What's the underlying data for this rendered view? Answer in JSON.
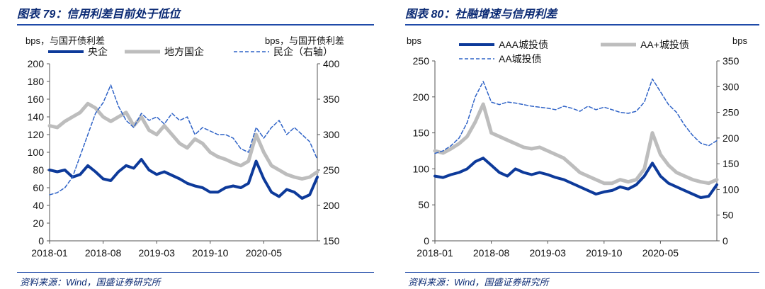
{
  "figures": [
    {
      "caption": "图表 79：信用利差目前处于低位",
      "source": "资料来源：Wind，国盛证券研究所"
    },
    {
      "caption": "图表 80：社融增速与信用利差",
      "source": "资料来源：Wind，国盛证券研究所"
    }
  ],
  "chart_data": [
    {
      "type": "line",
      "title": "",
      "ylabel_left": "bps，与国开债利差",
      "ylabel_right": "bps，与国开债利差",
      "x_ticks": [
        "2018-01",
        "2018-08",
        "2019-03",
        "2019-10",
        "2020-05"
      ],
      "xlim": [
        "2018-01",
        "2020-12"
      ],
      "ylim_left": [
        0,
        200
      ],
      "yticks_left": [
        0,
        20,
        40,
        60,
        80,
        100,
        120,
        140,
        160,
        180,
        200
      ],
      "ylim_right": [
        150,
        400
      ],
      "yticks_right": [
        150,
        200,
        250,
        300,
        350,
        400
      ],
      "legend_placement": "top",
      "series": [
        {
          "name": "央企",
          "axis": "left",
          "color": "#0d3a9a",
          "style": "solid",
          "width": 4,
          "x": [
            "2018-01",
            "2018-02",
            "2018-03",
            "2018-04",
            "2018-05",
            "2018-06",
            "2018-07",
            "2018-08",
            "2018-09",
            "2018-10",
            "2018-11",
            "2018-12",
            "2019-01",
            "2019-02",
            "2019-03",
            "2019-04",
            "2019-05",
            "2019-06",
            "2019-07",
            "2019-08",
            "2019-09",
            "2019-10",
            "2019-11",
            "2019-12",
            "2020-01",
            "2020-02",
            "2020-03",
            "2020-04",
            "2020-05",
            "2020-06",
            "2020-07",
            "2020-08",
            "2020-09",
            "2020-10",
            "2020-11",
            "2020-12"
          ],
          "values": [
            80,
            78,
            80,
            72,
            75,
            85,
            78,
            70,
            68,
            78,
            85,
            82,
            92,
            80,
            75,
            78,
            74,
            70,
            65,
            62,
            60,
            55,
            55,
            60,
            62,
            60,
            65,
            90,
            70,
            55,
            50,
            58,
            55,
            48,
            52,
            72
          ]
        },
        {
          "name": "地方国企",
          "axis": "left",
          "color": "#bdbdbd",
          "style": "solid",
          "width": 5,
          "x": [
            "2018-01",
            "2018-02",
            "2018-03",
            "2018-04",
            "2018-05",
            "2018-06",
            "2018-07",
            "2018-08",
            "2018-09",
            "2018-10",
            "2018-11",
            "2018-12",
            "2019-01",
            "2019-02",
            "2019-03",
            "2019-04",
            "2019-05",
            "2019-06",
            "2019-07",
            "2019-08",
            "2019-09",
            "2019-10",
            "2019-11",
            "2019-12",
            "2020-01",
            "2020-02",
            "2020-03",
            "2020-04",
            "2020-05",
            "2020-06",
            "2020-07",
            "2020-08",
            "2020-09",
            "2020-10",
            "2020-11",
            "2020-12"
          ],
          "values": [
            130,
            128,
            135,
            140,
            145,
            155,
            150,
            140,
            135,
            140,
            145,
            130,
            140,
            125,
            120,
            130,
            120,
            110,
            105,
            115,
            110,
            100,
            95,
            92,
            88,
            85,
            90,
            120,
            100,
            85,
            80,
            75,
            72,
            70,
            72,
            78
          ]
        },
        {
          "name": "民企（右轴）",
          "axis": "right",
          "color": "#2f63c7",
          "style": "dashed",
          "width": 1.5,
          "x": [
            "2018-01",
            "2018-02",
            "2018-03",
            "2018-04",
            "2018-05",
            "2018-06",
            "2018-07",
            "2018-08",
            "2018-09",
            "2018-10",
            "2018-11",
            "2018-12",
            "2019-01",
            "2019-02",
            "2019-03",
            "2019-04",
            "2019-05",
            "2019-06",
            "2019-07",
            "2019-08",
            "2019-09",
            "2019-10",
            "2019-11",
            "2019-12",
            "2020-01",
            "2020-02",
            "2020-03",
            "2020-04",
            "2020-05",
            "2020-06",
            "2020-07",
            "2020-08",
            "2020-09",
            "2020-10",
            "2020-11",
            "2020-12"
          ],
          "values": [
            215,
            218,
            225,
            240,
            270,
            300,
            330,
            345,
            370,
            340,
            320,
            310,
            330,
            320,
            325,
            315,
            330,
            320,
            325,
            300,
            310,
            305,
            300,
            300,
            295,
            280,
            275,
            310,
            295,
            310,
            320,
            300,
            310,
            300,
            290,
            265
          ]
        }
      ]
    },
    {
      "type": "line",
      "title": "",
      "ylabel_left": "bps",
      "ylabel_right": "bps",
      "x_ticks": [
        "2018-01",
        "2018-08",
        "2019-03",
        "2019-10",
        "2020-05"
      ],
      "xlim": [
        "2018-01",
        "2020-12"
      ],
      "ylim_left": [
        0,
        250
      ],
      "yticks_left": [
        0,
        50,
        100,
        150,
        200,
        250
      ],
      "ylim_right": [
        0,
        350
      ],
      "yticks_right": [
        0,
        50,
        100,
        150,
        200,
        250,
        300,
        350
      ],
      "legend_placement": "top",
      "series": [
        {
          "name": "AAA城投债",
          "axis": "left",
          "color": "#0d3a9a",
          "style": "solid",
          "width": 4,
          "x": [
            "2018-01",
            "2018-02",
            "2018-03",
            "2018-04",
            "2018-05",
            "2018-06",
            "2018-07",
            "2018-08",
            "2018-09",
            "2018-10",
            "2018-11",
            "2018-12",
            "2019-01",
            "2019-02",
            "2019-03",
            "2019-04",
            "2019-05",
            "2019-06",
            "2019-07",
            "2019-08",
            "2019-09",
            "2019-10",
            "2019-11",
            "2019-12",
            "2020-01",
            "2020-02",
            "2020-03",
            "2020-04",
            "2020-05",
            "2020-06",
            "2020-07",
            "2020-08",
            "2020-09",
            "2020-10",
            "2020-11",
            "2020-12"
          ],
          "values": [
            90,
            88,
            92,
            95,
            100,
            110,
            115,
            105,
            95,
            90,
            100,
            95,
            92,
            95,
            92,
            88,
            85,
            80,
            75,
            70,
            65,
            68,
            70,
            75,
            72,
            78,
            90,
            108,
            90,
            80,
            75,
            70,
            65,
            60,
            62,
            78
          ]
        },
        {
          "name": "AA+城投债",
          "axis": "left",
          "color": "#bdbdbd",
          "style": "solid",
          "width": 5,
          "x": [
            "2018-01",
            "2018-02",
            "2018-03",
            "2018-04",
            "2018-05",
            "2018-06",
            "2018-07",
            "2018-08",
            "2018-09",
            "2018-10",
            "2018-11",
            "2018-12",
            "2019-01",
            "2019-02",
            "2019-03",
            "2019-04",
            "2019-05",
            "2019-06",
            "2019-07",
            "2019-08",
            "2019-09",
            "2019-10",
            "2019-11",
            "2019-12",
            "2020-01",
            "2020-02",
            "2020-03",
            "2020-04",
            "2020-05",
            "2020-06",
            "2020-07",
            "2020-08",
            "2020-09",
            "2020-10",
            "2020-11",
            "2020-12"
          ],
          "values": [
            125,
            122,
            128,
            135,
            145,
            165,
            190,
            150,
            145,
            140,
            135,
            130,
            128,
            130,
            125,
            120,
            115,
            105,
            95,
            90,
            85,
            80,
            80,
            85,
            82,
            85,
            100,
            150,
            120,
            105,
            95,
            90,
            85,
            82,
            80,
            85
          ]
        },
        {
          "name": "AA城投债",
          "axis": "right",
          "color": "#2f63c7",
          "style": "dashed",
          "width": 1.5,
          "x": [
            "2018-01",
            "2018-02",
            "2018-03",
            "2018-04",
            "2018-05",
            "2018-06",
            "2018-07",
            "2018-08",
            "2018-09",
            "2018-10",
            "2018-11",
            "2018-12",
            "2019-01",
            "2019-02",
            "2019-03",
            "2019-04",
            "2019-05",
            "2019-06",
            "2019-07",
            "2019-08",
            "2019-09",
            "2019-10",
            "2019-11",
            "2019-12",
            "2020-01",
            "2020-02",
            "2020-03",
            "2020-04",
            "2020-05",
            "2020-06",
            "2020-07",
            "2020-08",
            "2020-09",
            "2020-10",
            "2020-11",
            "2020-12"
          ],
          "values": [
            170,
            175,
            185,
            200,
            230,
            280,
            310,
            270,
            265,
            270,
            268,
            265,
            262,
            260,
            258,
            255,
            262,
            258,
            252,
            262,
            255,
            260,
            255,
            250,
            248,
            252,
            270,
            315,
            290,
            265,
            250,
            225,
            205,
            190,
            185,
            195
          ]
        }
      ]
    }
  ]
}
